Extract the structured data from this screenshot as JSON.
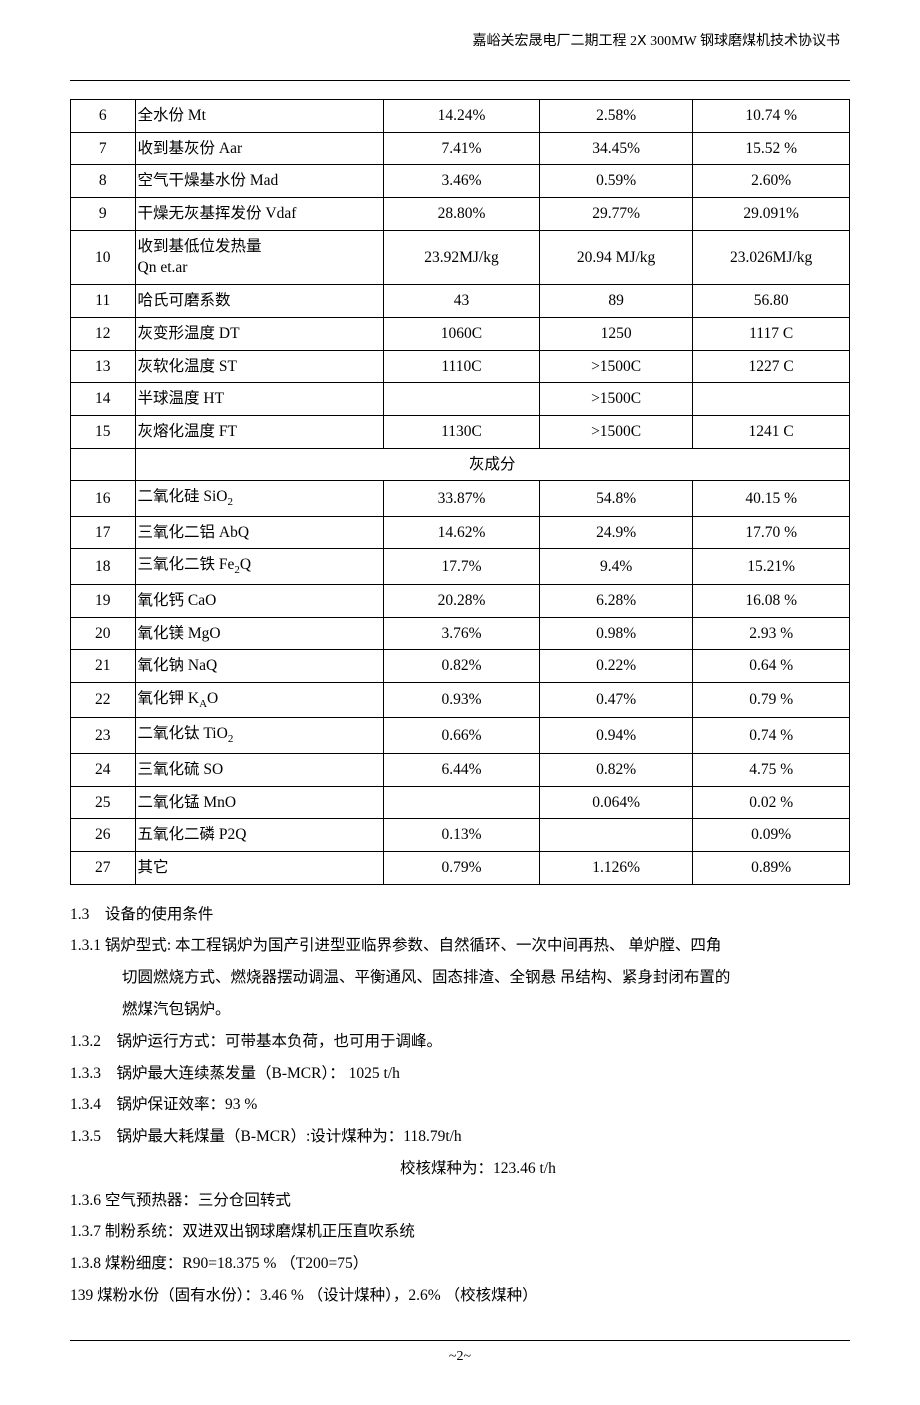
{
  "header_title": "嘉峪关宏晟电厂二期工程 2Ⅹ 300MW 钢球磨煤机技术协议书",
  "footer": "~2~",
  "table": {
    "rows_top": [
      {
        "idx": "6",
        "name": "全水份 Mt",
        "v1": "14.24%",
        "v2": "2.58%",
        "v3": "10.74 %"
      },
      {
        "idx": "7",
        "name": "收到基灰份 Aar",
        "v1": "7.41%",
        "v2": "34.45%",
        "v3": "15.52 %"
      },
      {
        "idx": "8",
        "name": "空气干燥基水份 Mad",
        "v1": "3.46%",
        "v2": "0.59%",
        "v3": "2.60%"
      },
      {
        "idx": "9",
        "name": "干燥无灰基挥发份 Vdaf",
        "v1": "28.80%",
        "v2": "29.77%",
        "v3": "29.091%"
      },
      {
        "idx": "10",
        "name": "收到基低位发热量\nQn et.ar",
        "v1": "23.92MJ/kg",
        "v2": "20.94 MJ/kg",
        "v3": "23.026MJ/kg"
      },
      {
        "idx": "11",
        "name": "哈氏可磨系数",
        "v1": "43",
        "v2": "89",
        "v3": "56.80"
      },
      {
        "idx": "12",
        "name": "灰变形温度 DT",
        "v1": "1060C",
        "v2": "1250",
        "v3": "1117 C"
      },
      {
        "idx": "13",
        "name": "灰软化温度 ST",
        "v1": "1110C",
        "v2": ">1500C",
        "v3": "1227 C"
      },
      {
        "idx": "14",
        "name": "半球温度 HT",
        "v1": "",
        "v2": ">1500C",
        "v3": ""
      },
      {
        "idx": "15",
        "name": "灰熔化温度 FT",
        "v1": "1130C",
        "v2": ">1500C",
        "v3": "1241 C"
      }
    ],
    "section_label": "灰成分",
    "rows_bottom": [
      {
        "idx": "16",
        "name": "二氧化硅 SiO",
        "sub": "2",
        "v1": "33.87%",
        "v2": "54.8%",
        "v3": "40.15 %"
      },
      {
        "idx": "17",
        "name": "三氧化二铝 AbQ",
        "sub": "",
        "v1": "14.62%",
        "v2": "24.9%",
        "v3": "17.70 %"
      },
      {
        "idx": "18",
        "name": "三氧化二铁 Fe",
        "sub": "2",
        "name2": "Q",
        "v1": "17.7%",
        "v2": "9.4%",
        "v3": "15.21%"
      },
      {
        "idx": "19",
        "name": "氧化钙 CaO",
        "sub": "",
        "v1": "20.28%",
        "v2": "6.28%",
        "v3": "16.08 %"
      },
      {
        "idx": "20",
        "name": "氧化镁 MgO",
        "sub": "",
        "v1": "3.76%",
        "v2": "0.98%",
        "v3": "2.93 %"
      },
      {
        "idx": "21",
        "name": "氧化钠 NaQ",
        "sub": "",
        "v1": "0.82%",
        "v2": "0.22%",
        "v3": "0.64 %"
      },
      {
        "idx": "22",
        "name": "氧化钾 K",
        "sub": "A",
        "name2": "O",
        "v1": "0.93%",
        "v2": "0.47%",
        "v3": "0.79 %"
      },
      {
        "idx": "23",
        "name": "二氧化钛 TiO",
        "sub": "2",
        "v1": "0.66%",
        "v2": "0.94%",
        "v3": "0.74 %"
      },
      {
        "idx": "24",
        "name": "三氧化硫 SO",
        "sub": "",
        "v1": "6.44%",
        "v2": "0.82%",
        "v3": "4.75 %"
      },
      {
        "idx": "25",
        "name": "二氧化锰 MnO",
        "sub": "",
        "v1": "",
        "v2": "0.064%",
        "v3": "0.02 %"
      },
      {
        "idx": "26",
        "name": "五氧化二磷 P2Q",
        "sub": "",
        "v1": "0.13%",
        "v2": "",
        "v3": "0.09%"
      },
      {
        "idx": "27",
        "name": "其它",
        "sub": "",
        "v1": "0.79%",
        "v2": "1.126%",
        "v3": "0.89%"
      }
    ]
  },
  "body": {
    "l1": "1.3　设备的使用条件",
    "l2": "1.3.1 锅炉型式: 本工程锅炉为国产引进型亚临界参数、自然循环、一次中间再热、 单炉膛、四角",
    "l2b": "切圆燃烧方式、燃烧器摆动调温、平衡通风、固态排渣、全钢悬 吊结构、紧身封闭布置的",
    "l2c": "燃煤汽包锅炉。",
    "l3": "1.3.2　锅炉运行方式：可带基本负荷，也可用于调峰。",
    "l4": "1.3.3　锅炉最大连续蒸发量（B-MCR）：  1025 t/h",
    "l5": "1.3.4　锅炉保证效率：93 %",
    "l6": "1.3.5　锅炉最大耗煤量（B-MCR）:设计煤种为：118.79t/h",
    "l6b": "校核煤种为：123.46 t/h",
    "l7": "1.3.6 空气预热器：三分仓回转式",
    "l8": "1.3.7 制粉系统：双进双出钢球磨煤机正压直吹系统",
    "l9": "1.3.8  煤粉细度：R90=18.375 % （T200=75）",
    "l10": "139 煤粉水份（固有水份）：3.46 % （设计煤种），2.6% （校核煤种）"
  }
}
